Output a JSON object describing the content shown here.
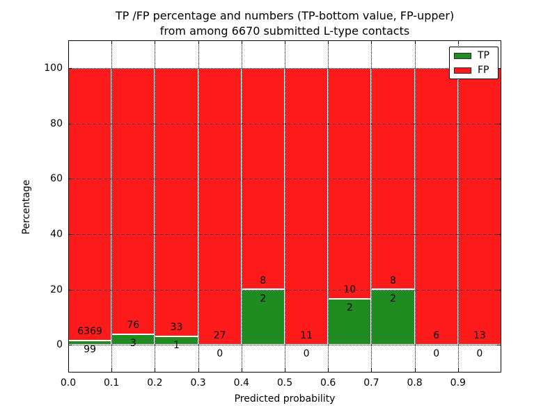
{
  "chart_data": {
    "type": "bar",
    "stacked": true,
    "title": "TP /FP percentage and numbers (TP-bottom value, FP-upper) from among 6670 submitted L-type contacts",
    "title_line1": "TP /FP percentage and numbers (TP-bottom value, FP-upper)",
    "title_line2": "from among 6670 submitted L-type contacts",
    "xlabel": "Predicted probability",
    "ylabel": "Percentage",
    "total_submitted_contacts": "6670",
    "x_tick_labels": [
      "0.0",
      "0.1",
      "0.2",
      "0.3",
      "0.4",
      "0.5",
      "0.6",
      "0.7",
      "0.8",
      "0.9"
    ],
    "y_ticks": [
      0,
      20,
      40,
      60,
      80,
      100
    ],
    "xlim": [
      0.0,
      1.0
    ],
    "ylim": [
      -10,
      110
    ],
    "grid": true,
    "grid_style": "dotted",
    "legend": {
      "position": "upper right",
      "entries": [
        {
          "label": "TP",
          "color": "#208b20"
        },
        {
          "label": "FP",
          "color": "#fc1a1a"
        }
      ]
    },
    "colors": {
      "tp": "#208b20",
      "fp": "#fc1a1a",
      "bar_edge": "#ffffff"
    },
    "bins": [
      {
        "range": [
          0.0,
          0.1
        ],
        "tp": 99,
        "fp": 6369
      },
      {
        "range": [
          0.1,
          0.2
        ],
        "tp": 3,
        "fp": 76
      },
      {
        "range": [
          0.2,
          0.3
        ],
        "tp": 1,
        "fp": 33
      },
      {
        "range": [
          0.3,
          0.4
        ],
        "tp": 0,
        "fp": 27
      },
      {
        "range": [
          0.4,
          0.5
        ],
        "tp": 2,
        "fp": 8
      },
      {
        "range": [
          0.5,
          0.6
        ],
        "tp": 0,
        "fp": 11
      },
      {
        "range": [
          0.6,
          0.7
        ],
        "tp": 2,
        "fp": 10
      },
      {
        "range": [
          0.7,
          0.8
        ],
        "tp": 2,
        "fp": 8
      },
      {
        "range": [
          0.8,
          0.9
        ],
        "tp": 0,
        "fp": 6
      },
      {
        "range": [
          0.9,
          1.0
        ],
        "tp": 0,
        "fp": 13
      }
    ]
  }
}
